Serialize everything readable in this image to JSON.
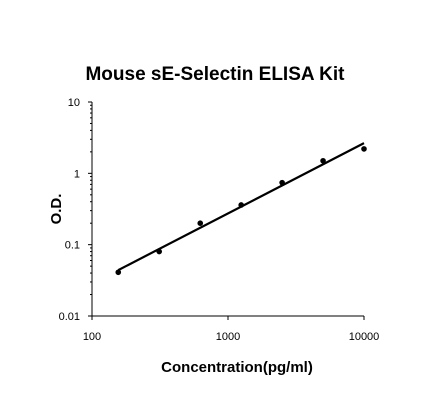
{
  "chart_data": {
    "type": "scatter",
    "title": "Mouse sE-Selectin ELISA Kit",
    "xlabel": "Concentration(pg/ml)",
    "ylabel": "O.D.",
    "x_scale": "log",
    "y_scale": "log",
    "xlim": [
      100,
      10000
    ],
    "ylim": [
      0.01,
      10
    ],
    "x_ticks": [
      100,
      1000,
      10000
    ],
    "x_tick_labels": [
      "100",
      "1000",
      "10000"
    ],
    "y_ticks": [
      10,
      1,
      0.1,
      0.01
    ],
    "y_tick_labels": [
      "10",
      "1",
      "0.1",
      "0.01"
    ],
    "grid": false,
    "series": [
      {
        "points": [
          {
            "x": 156,
            "y": 0.041
          },
          {
            "x": 312,
            "y": 0.08
          },
          {
            "x": 625,
            "y": 0.2
          },
          {
            "x": 1250,
            "y": 0.36
          },
          {
            "x": 2500,
            "y": 0.74
          },
          {
            "x": 5000,
            "y": 1.5
          },
          {
            "x": 10000,
            "y": 2.2
          }
        ]
      }
    ],
    "trendline": {
      "x": [
        156,
        10000
      ],
      "y": [
        0.044,
        2.65
      ]
    }
  }
}
